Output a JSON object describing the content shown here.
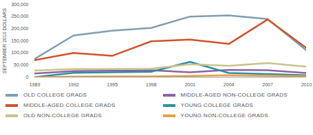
{
  "chart_data": {
    "type": "line",
    "y_label": "SEPTEMBER 2010 DOLLARS",
    "x": [
      1989,
      1992,
      1995,
      1998,
      2001,
      2004,
      2007,
      2010
    ],
    "xlim": [
      1989,
      2010
    ],
    "xticks": [
      1989,
      1992,
      1995,
      1998,
      2001,
      2004,
      2007,
      2010
    ],
    "ylim": [
      0,
      300000
    ],
    "yticks": [
      0,
      {
        "value": 50000,
        "label": "50,000"
      },
      {
        "value": 100000,
        "label": "100,000"
      },
      {
        "value": 150000,
        "label": "150,000"
      },
      {
        "value": 200000,
        "label": "200,000"
      },
      {
        "value": 250000,
        "label": "250,000"
      },
      {
        "value": 300000,
        "label": "300,000"
      }
    ],
    "grid": false,
    "legend": "bottom",
    "series": [
      {
        "name": "OLD COLLEGE GRADS",
        "color": "#7f9db0",
        "values": [
          75000,
          172000,
          192000,
          203000,
          250000,
          255000,
          240000,
          110000
        ]
      },
      {
        "name": "MIDDLE-AGED NON-COLLEGE GRADS",
        "color": "#8a62a8",
        "values": [
          15000,
          25000,
          26000,
          28000,
          20000,
          30000,
          28000,
          17000
        ]
      },
      {
        "name": "MIDDLE-AGED COLLEGE GRADS",
        "color": "#d0522a",
        "values": [
          70000,
          100000,
          88000,
          148000,
          155000,
          137000,
          238000,
          120000
        ]
      },
      {
        "name": "YOUNG COLLEGE GRADS",
        "color": "#2a8ea0",
        "values": [
          0,
          18000,
          20000,
          22000,
          63000,
          17000,
          13000,
          8000
        ]
      },
      {
        "name": "OLD NON-COLLEGE GRADS",
        "color": "#c8c48a",
        "values": [
          27000,
          33000,
          33000,
          35000,
          53000,
          47000,
          58000,
          43000
        ]
      },
      {
        "name": "YOUNG NON-COLLEGE GRADS",
        "color": "#e8a040",
        "values": [
          0,
          2000,
          3000,
          3000,
          5000,
          8000,
          6000,
          4000
        ]
      }
    ]
  }
}
